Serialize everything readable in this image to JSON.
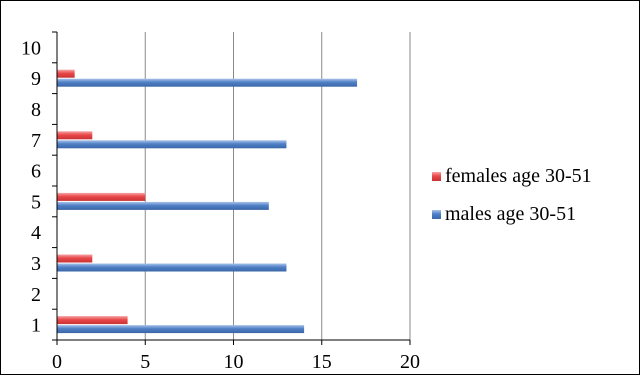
{
  "chart_data": {
    "type": "bar",
    "orientation": "horizontal",
    "categories": [
      "1",
      "2",
      "3",
      "4",
      "5",
      "6",
      "7",
      "8",
      "9",
      "10"
    ],
    "series": [
      {
        "name": "females age 30-51",
        "color": "#e8484a",
        "values": [
          4,
          null,
          2,
          null,
          5,
          null,
          2,
          null,
          1,
          null
        ]
      },
      {
        "name": "males age 30-51",
        "color": "#4f7fc6",
        "values": [
          14,
          null,
          13,
          null,
          12,
          null,
          13,
          null,
          17,
          null
        ]
      }
    ],
    "x_ticks": [
      "0",
      "5",
      "10",
      "15",
      "20"
    ],
    "xlim": [
      0,
      20
    ],
    "title": "",
    "xlabel": "",
    "ylabel": "",
    "grid": "vertical",
    "legend_position": "right"
  }
}
